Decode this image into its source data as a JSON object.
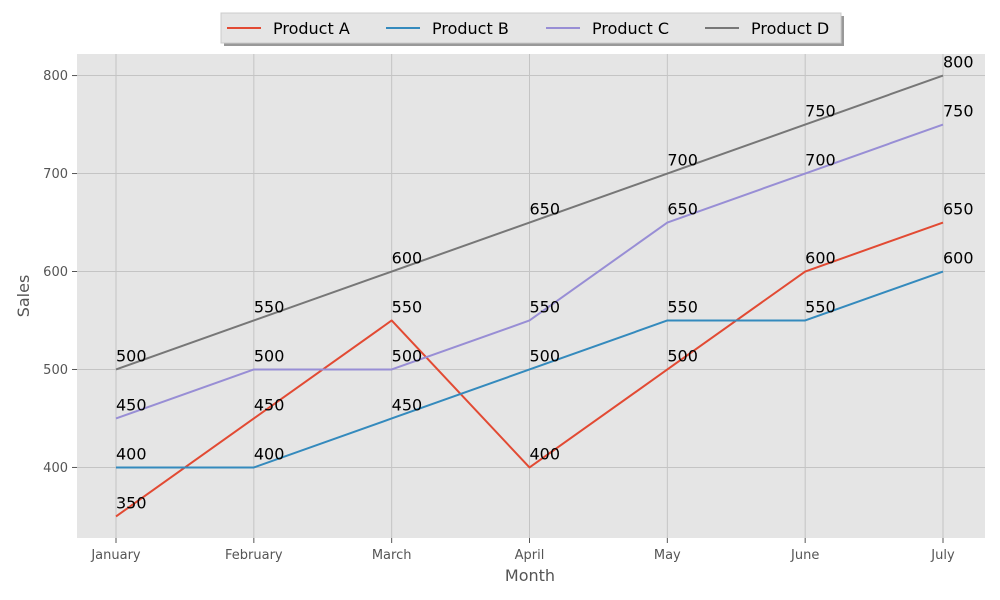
{
  "chart_data": {
    "type": "line",
    "title": "",
    "xlabel": "Month",
    "ylabel": "Sales",
    "categories": [
      "January",
      "February",
      "March",
      "April",
      "May",
      "June",
      "July"
    ],
    "y_ticks": [
      400,
      500,
      600,
      700,
      800
    ],
    "ylim": [
      328,
      822
    ],
    "grid": true,
    "legend_position": "top-center",
    "series": [
      {
        "name": "Product A",
        "color": "#e24a33",
        "values": [
          350,
          450,
          550,
          400,
          500,
          600,
          650
        ]
      },
      {
        "name": "Product B",
        "color": "#348abd",
        "values": [
          400,
          400,
          450,
          500,
          550,
          550,
          600
        ]
      },
      {
        "name": "Product C",
        "color": "#988ed5",
        "values": [
          450,
          500,
          500,
          550,
          650,
          700,
          750
        ]
      },
      {
        "name": "Product D",
        "color": "#777777",
        "values": [
          500,
          550,
          600,
          650,
          700,
          750,
          800
        ]
      }
    ]
  },
  "colors": {
    "plot_background": "#e5e5e5",
    "grid": "#c4c4c4"
  }
}
